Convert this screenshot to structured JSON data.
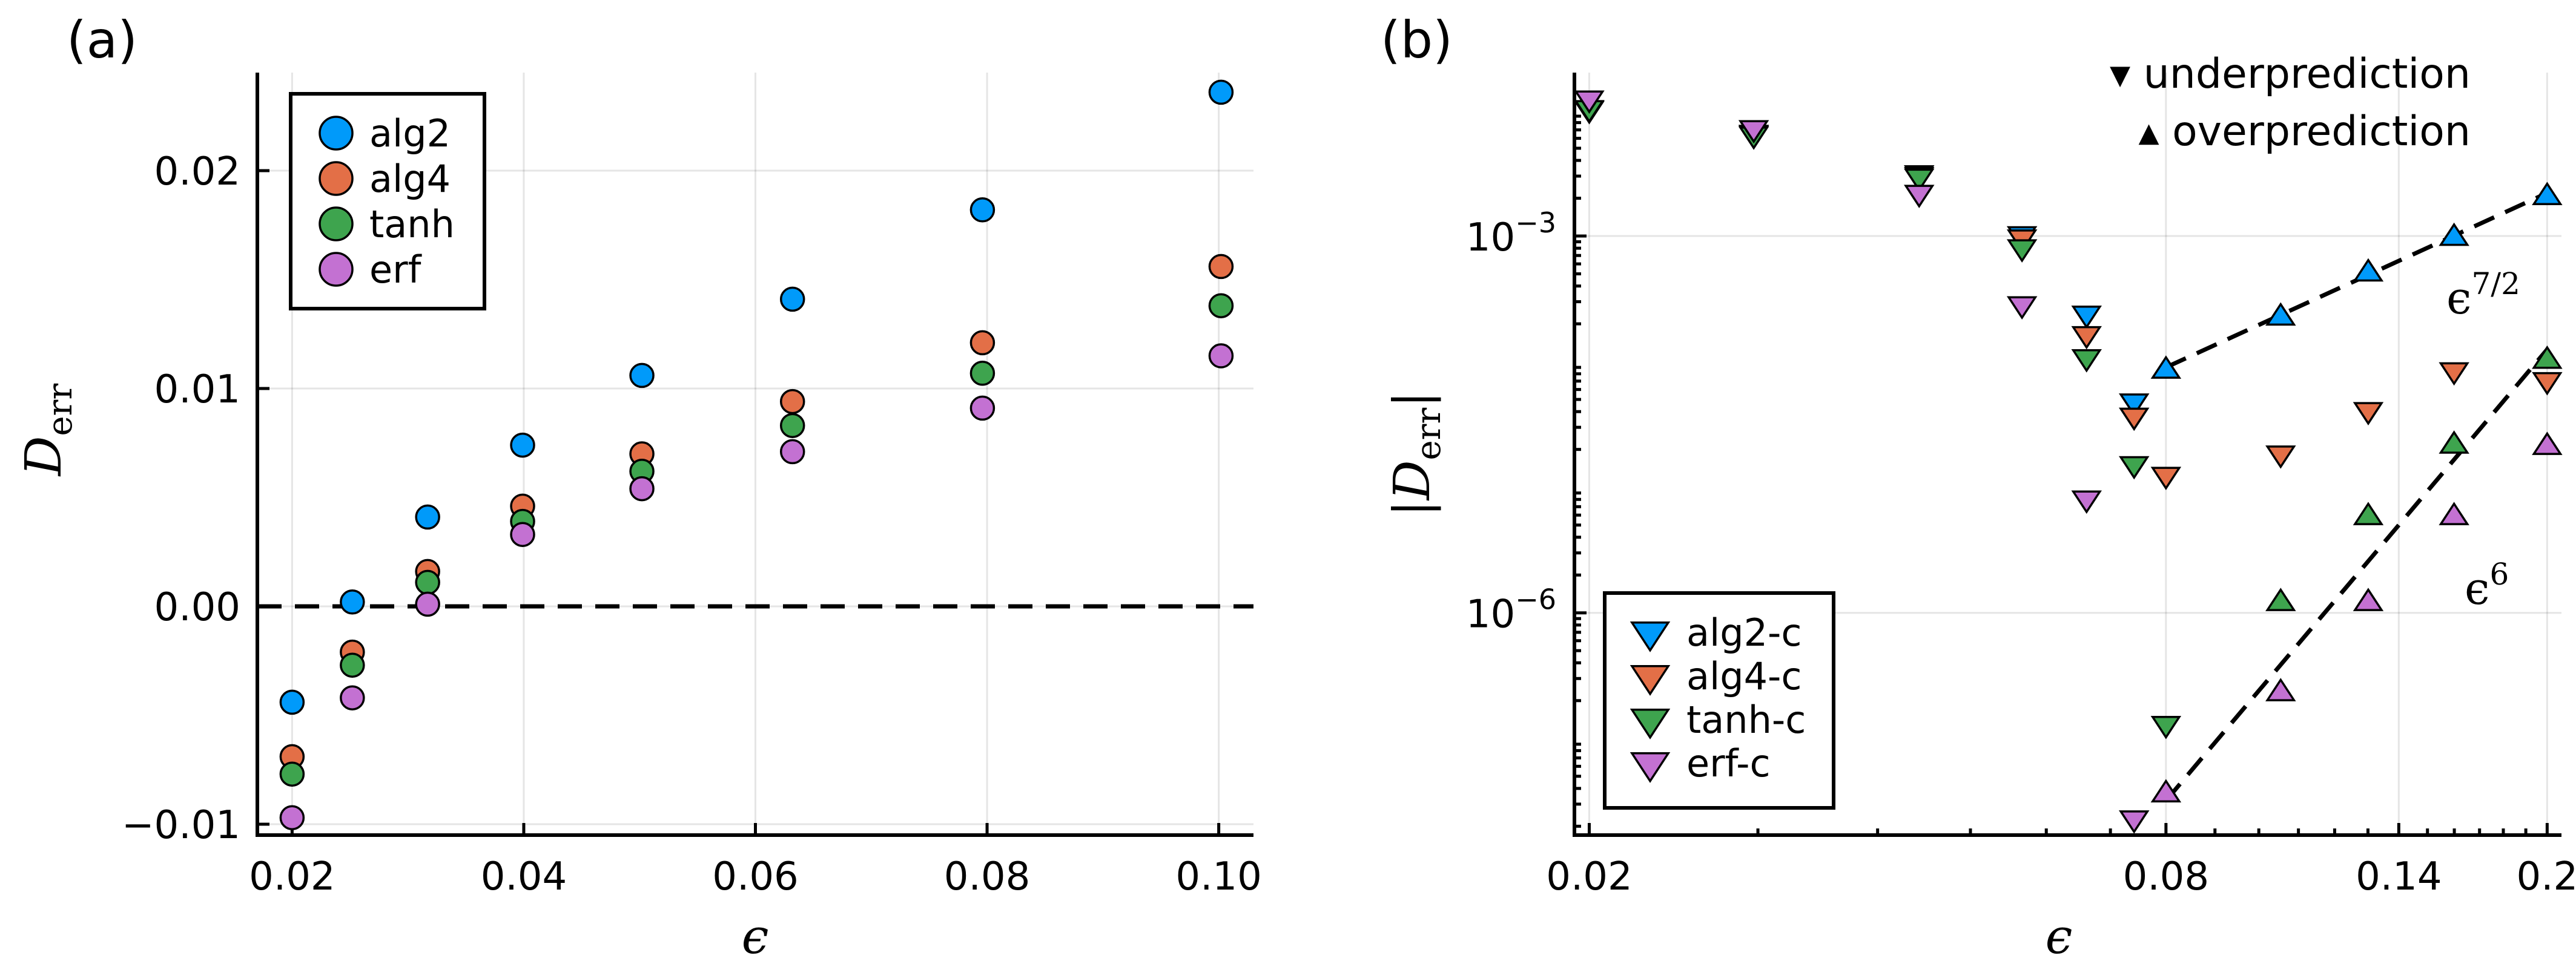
{
  "chart_data": [
    {
      "type": "scatter",
      "panel_label": "(a)",
      "xlabel": "ϵ",
      "ylabel_main": "D",
      "ylabel_sub": "err",
      "xlim": [
        0.017,
        0.103
      ],
      "ylim": [
        -0.0105,
        0.0245
      ],
      "xticks": [
        0.02,
        0.04,
        0.06,
        0.08,
        0.1
      ],
      "xtick_labels": [
        "0.02",
        "0.04",
        "0.06",
        "0.08",
        "0.10"
      ],
      "yticks": [
        -0.01,
        0.0,
        0.01,
        0.02
      ],
      "ytick_labels": [
        "−0.01",
        "0.00",
        "0.01",
        "0.02"
      ],
      "grid": true,
      "legend_position": "top-left",
      "reference_line": {
        "y": 0,
        "style": "dashed"
      },
      "x": [
        0.02,
        0.0252,
        0.0317,
        0.0399,
        0.0502,
        0.0632,
        0.0796,
        0.1002
      ],
      "series": [
        {
          "name": "alg2",
          "color": "#009AFA",
          "values": [
            -0.0044,
            0.0002,
            0.0041,
            0.0074,
            0.0106,
            0.0141,
            0.0182,
            0.0236
          ]
        },
        {
          "name": "alg4",
          "color": "#E36F47",
          "values": [
            -0.0069,
            -0.0021,
            0.0016,
            0.0046,
            0.007,
            0.0094,
            0.0121,
            0.0156
          ]
        },
        {
          "name": "tanh",
          "color": "#3EA44E",
          "values": [
            -0.0077,
            -0.0027,
            0.0011,
            0.0039,
            0.0062,
            0.0083,
            0.0107,
            0.0138
          ]
        },
        {
          "name": "erf",
          "color": "#C371D2",
          "values": [
            -0.0097,
            -0.0042,
            0.0001,
            0.0033,
            0.0054,
            0.0071,
            0.0091,
            0.0115
          ]
        }
      ]
    },
    {
      "type": "scatter",
      "panel_label": "(b)",
      "xlabel": "ϵ",
      "ylabel_main": "D",
      "ylabel_sub": "err",
      "x_scale": "log",
      "y_scale": "log",
      "xlim": [
        0.0193,
        0.207
      ],
      "ylim": [
        1.7e-08,
        0.02
      ],
      "xticks": [
        0.02,
        0.08,
        0.14,
        0.2
      ],
      "xtick_labels": [
        "0.02",
        "0.08",
        "0.14",
        "0.2"
      ],
      "yticks": [
        1e-06,
        0.001
      ],
      "ytick_label_base": "10",
      "ytick_label_exponents": [
        "−6",
        "−3"
      ],
      "grid": true,
      "legend_position": "bottom-left",
      "annotations": [
        {
          "text": "▾ underprediction"
        },
        {
          "text": "▴ overprediction"
        },
        {
          "base": "ϵ",
          "exponent": "7/2"
        },
        {
          "base": "ϵ",
          "exponent": "6"
        }
      ],
      "fit_lines": [
        {
          "x": [
            0.08,
            0.2
          ],
          "y": [
            9e-05,
            0.0022
          ],
          "style": "dashed"
        },
        {
          "x": [
            0.08,
            0.2
          ],
          "y": [
            3.2e-08,
            0.000125
          ],
          "style": "dashed"
        }
      ],
      "series": [
        {
          "name": "alg2-c",
          "color": "#009AFA",
          "points": [
            {
              "x": 0.02,
              "y": 0.0102,
              "dir": "down"
            },
            {
              "x": 0.0297,
              "y": 0.0065,
              "dir": "down"
            },
            {
              "x": 0.0442,
              "y": 0.00315,
              "dir": "down"
            },
            {
              "x": 0.0566,
              "y": 0.00103,
              "dir": "down"
            },
            {
              "x": 0.0661,
              "y": 0.00024,
              "dir": "down"
            },
            {
              "x": 0.0741,
              "y": 4.8e-05,
              "dir": "down"
            },
            {
              "x": 0.08,
              "y": 8.5e-05,
              "dir": "up"
            },
            {
              "x": 0.1054,
              "y": 0.000225,
              "dir": "up"
            },
            {
              "x": 0.1301,
              "y": 0.000505,
              "dir": "up"
            },
            {
              "x": 0.1599,
              "y": 0.00097,
              "dir": "up"
            },
            {
              "x": 0.2,
              "y": 0.00205,
              "dir": "up"
            }
          ]
        },
        {
          "name": "alg4-c",
          "color": "#E36F47",
          "points": [
            {
              "x": 0.02,
              "y": 0.0103,
              "dir": "down"
            },
            {
              "x": 0.0297,
              "y": 0.0066,
              "dir": "down"
            },
            {
              "x": 0.0442,
              "y": 0.00305,
              "dir": "down"
            },
            {
              "x": 0.0566,
              "y": 0.00097,
              "dir": "down"
            },
            {
              "x": 0.0661,
              "y": 0.000165,
              "dir": "down"
            },
            {
              "x": 0.0741,
              "y": 3.7e-05,
              "dir": "down"
            },
            {
              "x": 0.08,
              "y": 1.25e-05,
              "dir": "down"
            },
            {
              "x": 0.1054,
              "y": 1.85e-05,
              "dir": "down"
            },
            {
              "x": 0.1301,
              "y": 4.1e-05,
              "dir": "down"
            },
            {
              "x": 0.1599,
              "y": 8.5e-05,
              "dir": "down"
            },
            {
              "x": 0.2,
              "y": 7.1e-05,
              "dir": "down"
            }
          ]
        },
        {
          "name": "tanh-c",
          "color": "#3EA44E",
          "points": [
            {
              "x": 0.02,
              "y": 0.0104,
              "dir": "down"
            },
            {
              "x": 0.0297,
              "y": 0.0064,
              "dir": "down"
            },
            {
              "x": 0.0442,
              "y": 0.00296,
              "dir": "down"
            },
            {
              "x": 0.0566,
              "y": 0.00081,
              "dir": "down"
            },
            {
              "x": 0.0661,
              "y": 0.000108,
              "dir": "down"
            },
            {
              "x": 0.0741,
              "y": 1.52e-05,
              "dir": "down"
            },
            {
              "x": 0.08,
              "y": 1.3e-07,
              "dir": "down"
            },
            {
              "x": 0.1054,
              "y": 1.2e-06,
              "dir": "up"
            },
            {
              "x": 0.1301,
              "y": 5.8e-06,
              "dir": "up"
            },
            {
              "x": 0.1599,
              "y": 2.15e-05,
              "dir": "up"
            },
            {
              "x": 0.2,
              "y": 0.000102,
              "dir": "up"
            }
          ]
        },
        {
          "name": "erf-c",
          "color": "#C371D2",
          "points": [
            {
              "x": 0.02,
              "y": 0.0124,
              "dir": "down"
            },
            {
              "x": 0.0297,
              "y": 0.0072,
              "dir": "down"
            },
            {
              "x": 0.0442,
              "y": 0.0022,
              "dir": "down"
            },
            {
              "x": 0.0566,
              "y": 0.000285,
              "dir": "down"
            },
            {
              "x": 0.0661,
              "y": 8.1e-06,
              "dir": "down"
            },
            {
              "x": 0.0741,
              "y": 2.3e-08,
              "dir": "down"
            },
            {
              "x": 0.08,
              "y": 3.6e-08,
              "dir": "up"
            },
            {
              "x": 0.1054,
              "y": 2.3e-07,
              "dir": "up"
            },
            {
              "x": 0.1301,
              "y": 1.2e-06,
              "dir": "up"
            },
            {
              "x": 0.1599,
              "y": 5.8e-06,
              "dir": "up"
            },
            {
              "x": 0.2,
              "y": 2.1e-05,
              "dir": "up"
            }
          ]
        }
      ]
    }
  ]
}
